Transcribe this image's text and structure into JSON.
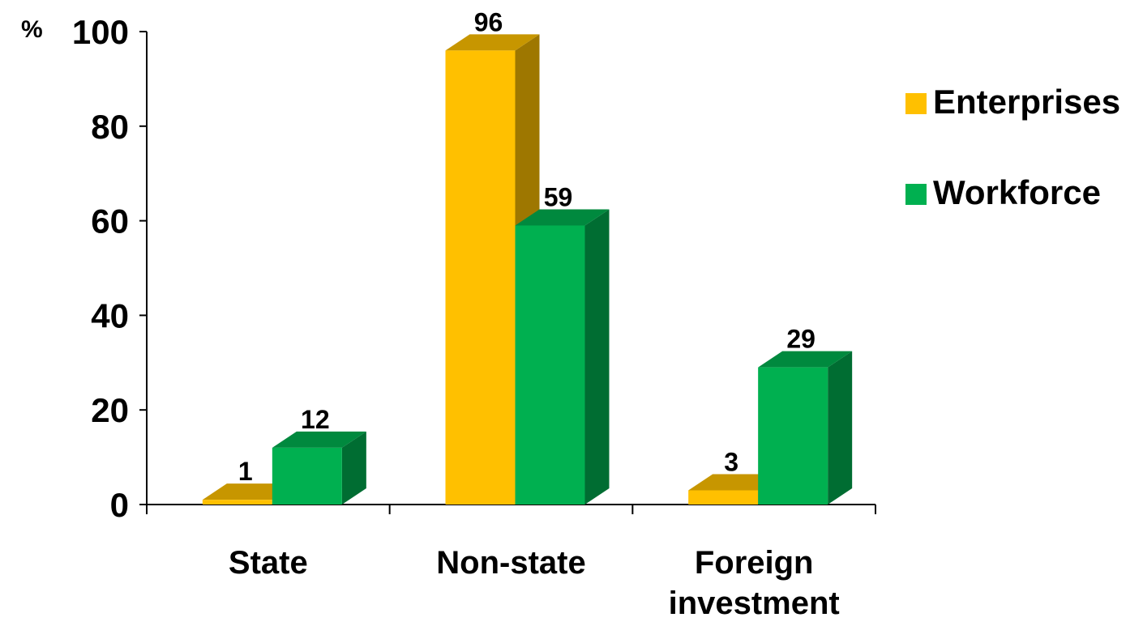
{
  "chart_data": {
    "type": "bar",
    "title": "",
    "xlabel": "",
    "ylabel": "%",
    "ylim": [
      0,
      100
    ],
    "yticks": [
      0,
      20,
      40,
      60,
      80,
      100
    ],
    "grid": false,
    "legend_position": "right",
    "categories": [
      "State",
      "Non-state",
      "Foreign investment"
    ],
    "category_lines": [
      [
        "State"
      ],
      [
        "Non-state"
      ],
      [
        "Foreign",
        "investment"
      ]
    ],
    "series": [
      {
        "name": "Enterprises",
        "color": "#FFC000",
        "values": [
          1,
          96,
          3
        ]
      },
      {
        "name": "Workforce",
        "color": "#00B050",
        "values": [
          12,
          59,
          29
        ]
      }
    ]
  }
}
